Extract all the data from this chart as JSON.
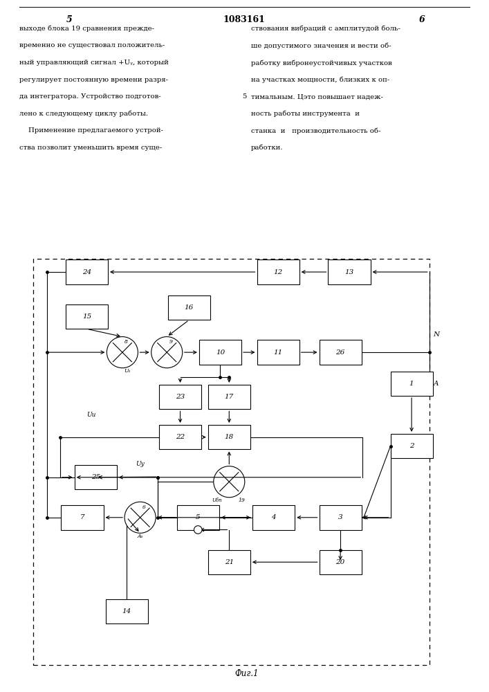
{
  "fig_caption": "Фиг.1",
  "page_left": "5",
  "page_right": "6",
  "patent": "1083161",
  "text_left": [
    "выходе блока 19 сравнения прежде-",
    "временно не существовал положитель-",
    "ный управляющий сигнал +Uᵧ, который",
    "регулирует постоянную времени разря-",
    "да интегратора. Устройство подготов-",
    "лено к следующему циклу работы.",
    "    Применение предлагаемого устрой-",
    "ства позволит уменьшить время суще-"
  ],
  "text_right": [
    "ствования вибраций с амплитудой боль-",
    "ше допустимого значения и вести об-",
    "работку вибронеустойчивых участков",
    "на участках мощности, близких к оп-",
    "тимальным. Цэто повышает надеж-",
    "ность работы инструмента  и",
    "станка  и   производительность об-",
    "работки."
  ],
  "background": "#ffffff"
}
